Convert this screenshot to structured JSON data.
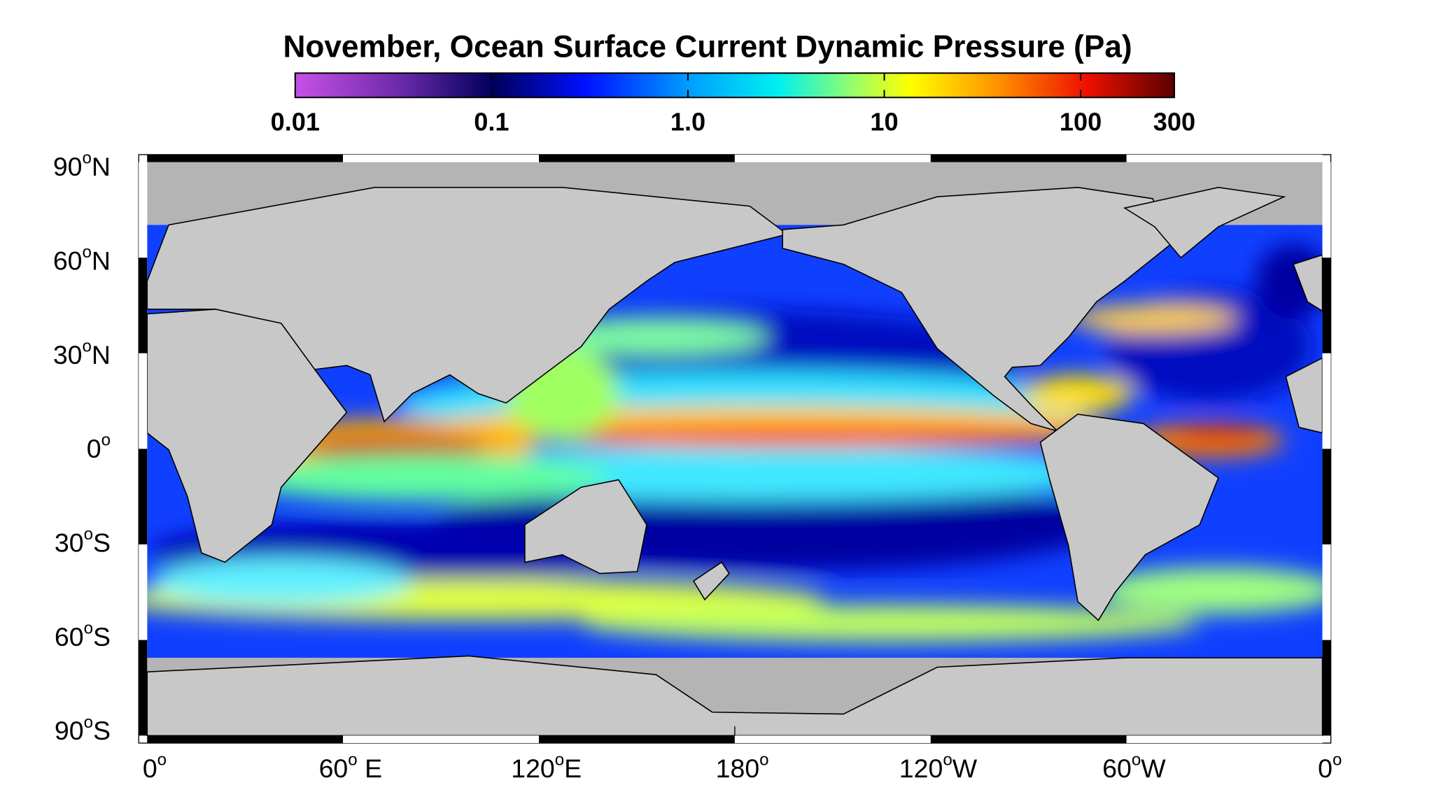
{
  "title": "November, Ocean Surface Current Dynamic Pressure (Pa)",
  "colorbar": {
    "log": true,
    "range": [
      0.01,
      300
    ],
    "ticks": [
      0.01,
      0.1,
      {
        "value": 1,
        "label": "1.0"
      },
      10,
      100,
      300
    ]
  },
  "lat_labels": [
    {
      "deg": "90",
      "sup": "o",
      "dir": "N"
    },
    {
      "deg": "60",
      "sup": "o",
      "dir": "N"
    },
    {
      "deg": "30",
      "sup": "o",
      "dir": "N"
    },
    {
      "deg": "0",
      "sup": "o",
      "dir": ""
    },
    {
      "deg": "30",
      "sup": "o",
      "dir": "S"
    },
    {
      "deg": "60",
      "sup": "o",
      "dir": "S"
    },
    {
      "deg": "90",
      "sup": "o",
      "dir": "S"
    }
  ],
  "lon_labels": [
    {
      "deg": "0",
      "sup": "o",
      "dir": ""
    },
    {
      "deg": "60",
      "sup": "o",
      "dir": " E"
    },
    {
      "deg": "120",
      "sup": "o",
      "dir": "E"
    },
    {
      "deg": "180",
      "sup": "o",
      "dir": ""
    },
    {
      "deg": "120",
      "sup": "o",
      "dir": "W"
    },
    {
      "deg": "60",
      "sup": "o",
      "dir": "W"
    },
    {
      "deg": "0",
      "sup": "o",
      "dir": ""
    }
  ]
}
